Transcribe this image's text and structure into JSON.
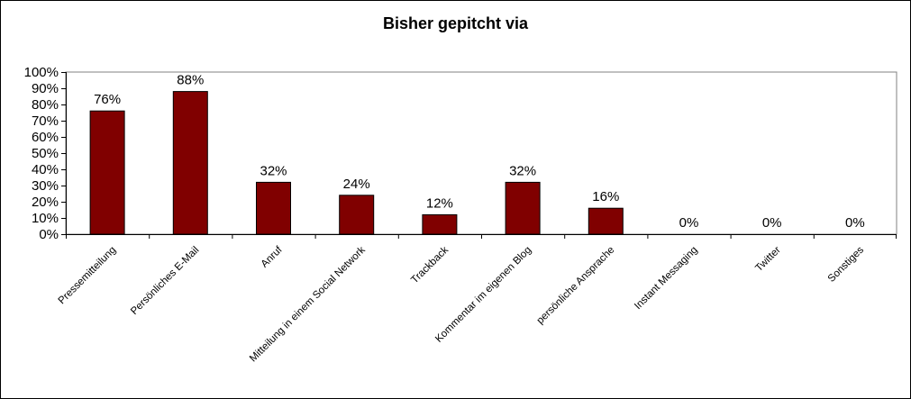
{
  "chart_data": {
    "type": "bar",
    "title": "Bisher gepitcht via",
    "categories": [
      "Pressemitteilung",
      "Persönliches E-Mail",
      "Anruf",
      "Mitteilung in einem Social Network",
      "Trackback",
      "Kommentar im eigenen Blog",
      "persönliche Ansprache",
      "Instant Messaging",
      "Twitter",
      "Sonstiges"
    ],
    "values": [
      76,
      88,
      32,
      24,
      12,
      32,
      16,
      0,
      0,
      0
    ],
    "data_labels": [
      "76%",
      "88%",
      "32%",
      "24%",
      "12%",
      "32%",
      "16%",
      "0%",
      "0%",
      "0%"
    ],
    "yticks": [
      "0%",
      "10%",
      "20%",
      "30%",
      "40%",
      "50%",
      "60%",
      "70%",
      "80%",
      "90%",
      "100%"
    ],
    "ylim": [
      0,
      100
    ],
    "xlabel": "",
    "ylabel": "",
    "grid": false,
    "legend": "none",
    "colors": {
      "bar": "#800000",
      "bar_edge": "#000000",
      "axis": "#000000"
    }
  }
}
